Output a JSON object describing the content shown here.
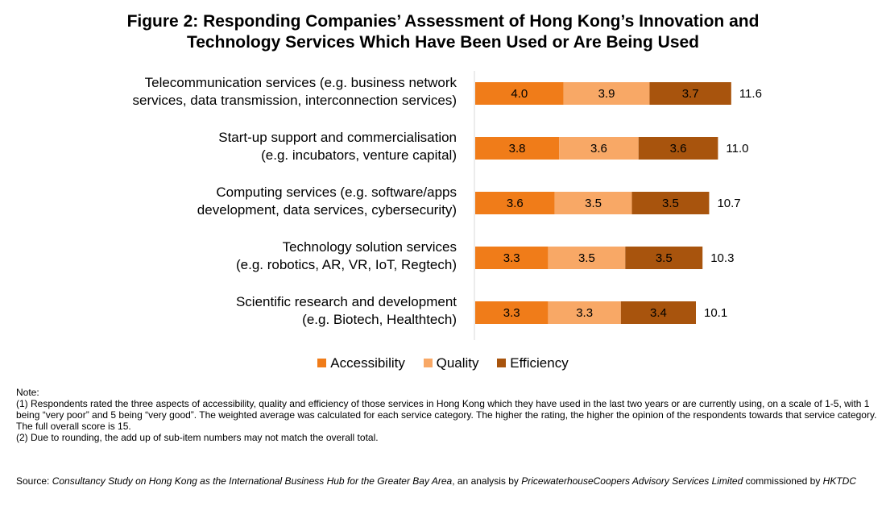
{
  "title_lines": [
    "Figure 2: Responding Companies’ Assessment of Hong Kong’s Innovation and",
    "Technology Services Which Have Been Used or Are Being Used"
  ],
  "chart_data": {
    "type": "bar",
    "orientation": "horizontal",
    "stacked": true,
    "categories": [
      [
        "Telecommunication services (e.g. business network",
        "services, data transmission, interconnection services)"
      ],
      [
        "Start-up support and commercialisation",
        "(e.g. incubators, venture capital)"
      ],
      [
        "Computing services (e.g. software/apps",
        "development, data services, cybersecurity)"
      ],
      [
        "Technology solution services",
        "(e.g. robotics, AR, VR, IoT, Regtech)"
      ],
      [
        "Scientific research and development",
        "(e.g. Biotech, Healthtech)"
      ]
    ],
    "series": [
      {
        "name": "Accessibility",
        "color": "#F07C19",
        "values": [
          "4.0",
          "3.8",
          "3.6",
          "3.3",
          "3.3"
        ]
      },
      {
        "name": "Quality",
        "color": "#F8A866",
        "values": [
          "3.9",
          "3.6",
          "3.5",
          "3.5",
          "3.3"
        ]
      },
      {
        "name": "Efficiency",
        "color": "#A8540D",
        "values": [
          "3.7",
          "3.6",
          "3.5",
          "3.5",
          "3.4"
        ]
      }
    ],
    "totals": [
      "11.6",
      "11.0",
      "10.7",
      "10.3",
      "10.1"
    ],
    "xlim": [
      0,
      15
    ],
    "legend_position": "bottom",
    "grid": false
  },
  "note": {
    "heading": "Note:",
    "lines": [
      "(1) Respondents rated the three aspects of accessibility, quality and efficiency of those services in Hong Kong which they have used in the last two years or are currently using, on a scale of 1-5, with 1 being “very poor” and 5 being “very good”. The weighted average was calculated for each service category. The higher the rating, the higher the opinion of the respondents towards that service category. The full overall score is 15.",
      "(2) Due to rounding, the add up of sub-item numbers may not match the overall total."
    ]
  },
  "source": {
    "prefix": "Source: ",
    "study_title": "Consultancy Study on Hong Kong as the International Business Hub for the Greater Bay Area",
    "middle": ", an analysis by ",
    "analyst": "PricewaterhouseCoopers Advisory Services Limited",
    "commissioned": " commissioned by ",
    "commissioner": "HKTDC"
  }
}
